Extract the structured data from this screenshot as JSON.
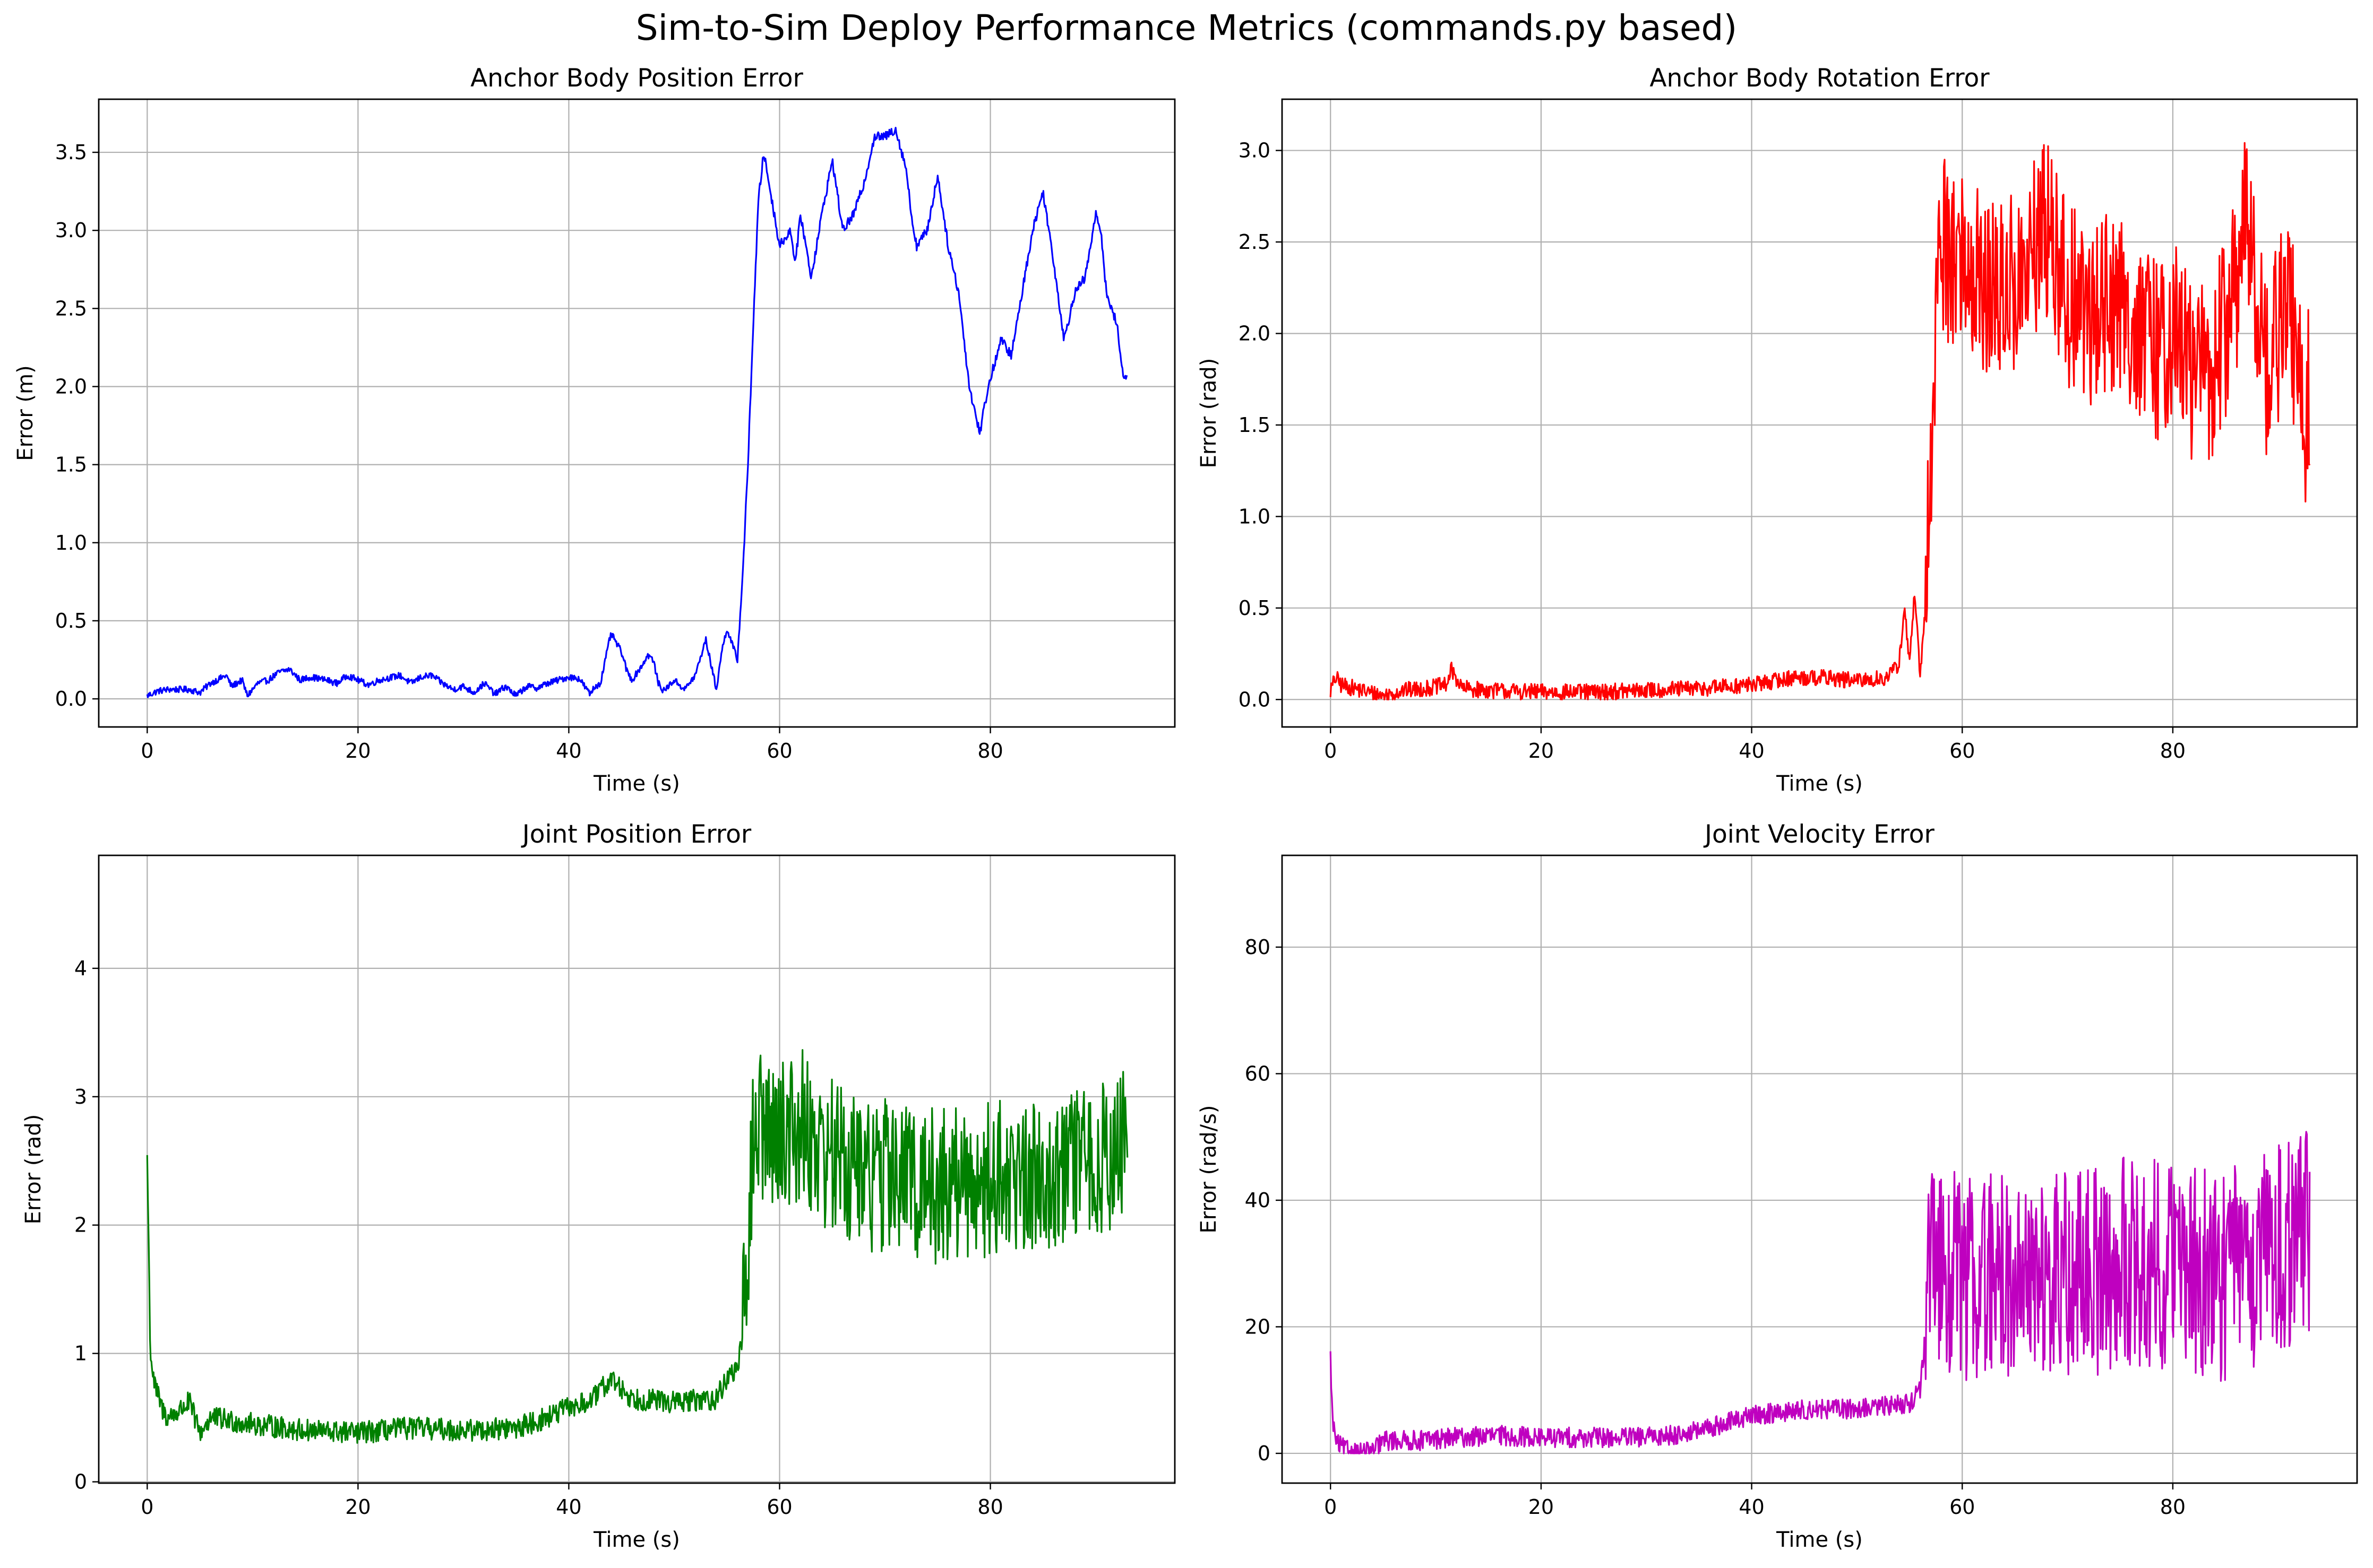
{
  "figure": {
    "title": "Sim-to-Sim Deploy Performance Metrics (commands.py based)"
  },
  "chart_data": [
    {
      "type": "line",
      "title": "Anchor Body Position Error",
      "xlabel": "Time (s)",
      "ylabel": "Error (m)",
      "color": "#0000ff",
      "xlim": [
        -4.6,
        97.5
      ],
      "ylim": [
        -0.18,
        3.84
      ],
      "xticks": [
        0,
        20,
        40,
        60,
        80
      ],
      "yticks": [
        0.0,
        0.5,
        1.0,
        1.5,
        2.0,
        2.5,
        3.0,
        3.5
      ],
      "ytick_labels": [
        "0.0",
        "0.5",
        "1.0",
        "1.5",
        "2.0",
        "2.5",
        "3.0",
        "3.5"
      ],
      "grid": true,
      "legend": "none",
      "key_points": [
        [
          0,
          0.02
        ],
        [
          1,
          0.05
        ],
        [
          2,
          0.06
        ],
        [
          4,
          0.06
        ],
        [
          5,
          0.04
        ],
        [
          6,
          0.1
        ],
        [
          7.5,
          0.15
        ],
        [
          8,
          0.08
        ],
        [
          9,
          0.12
        ],
        [
          9.5,
          0.02
        ],
        [
          10.5,
          0.1
        ],
        [
          11.5,
          0.12
        ],
        [
          12.5,
          0.17
        ],
        [
          13.5,
          0.19
        ],
        [
          14.5,
          0.12
        ],
        [
          15.5,
          0.14
        ],
        [
          17,
          0.12
        ],
        [
          18,
          0.1
        ],
        [
          19,
          0.15
        ],
        [
          20,
          0.12
        ],
        [
          21,
          0.09
        ],
        [
          22,
          0.12
        ],
        [
          24,
          0.15
        ],
        [
          25,
          0.1
        ],
        [
          26,
          0.14
        ],
        [
          27,
          0.15
        ],
        [
          28,
          0.1
        ],
        [
          29,
          0.06
        ],
        [
          30,
          0.08
        ],
        [
          31,
          0.04
        ],
        [
          32,
          0.1
        ],
        [
          33,
          0.03
        ],
        [
          34,
          0.08
        ],
        [
          35,
          0.02
        ],
        [
          36,
          0.08
        ],
        [
          37,
          0.07
        ],
        [
          38,
          0.1
        ],
        [
          39,
          0.12
        ],
        [
          40,
          0.14
        ],
        [
          41,
          0.13
        ],
        [
          42,
          0.03
        ],
        [
          42.5,
          0.08
        ],
        [
          43,
          0.1
        ],
        [
          44,
          0.42
        ],
        [
          45,
          0.3
        ],
        [
          45.5,
          0.18
        ],
        [
          46,
          0.12
        ],
        [
          47,
          0.22
        ],
        [
          47.5,
          0.28
        ],
        [
          48,
          0.25
        ],
        [
          48.5,
          0.1
        ],
        [
          49,
          0.05
        ],
        [
          50,
          0.12
        ],
        [
          51,
          0.06
        ],
        [
          52,
          0.15
        ],
        [
          53,
          0.38
        ],
        [
          54,
          0.06
        ],
        [
          54.5,
          0.3
        ],
        [
          55,
          0.45
        ],
        [
          55.5,
          0.35
        ],
        [
          56,
          0.25
        ],
        [
          56.5,
          0.8
        ],
        [
          57,
          1.5
        ],
        [
          57.5,
          2.4
        ],
        [
          58,
          3.2
        ],
        [
          58.5,
          3.5
        ],
        [
          59,
          3.3
        ],
        [
          60,
          2.9
        ],
        [
          61,
          3.0
        ],
        [
          61.5,
          2.8
        ],
        [
          62,
          3.1
        ],
        [
          63,
          2.7
        ],
        [
          64,
          3.1
        ],
        [
          65,
          3.45
        ],
        [
          66,
          3.0
        ],
        [
          67,
          3.1
        ],
        [
          68,
          3.3
        ],
        [
          69,
          3.6
        ],
        [
          70,
          3.6
        ],
        [
          71,
          3.65
        ],
        [
          72,
          3.4
        ],
        [
          72.5,
          3.1
        ],
        [
          73,
          2.9
        ],
        [
          74,
          3.0
        ],
        [
          75,
          3.35
        ],
        [
          76,
          2.9
        ],
        [
          77,
          2.6
        ],
        [
          78,
          2.0
        ],
        [
          78.5,
          1.85
        ],
        [
          79,
          1.7
        ],
        [
          79.5,
          1.9
        ],
        [
          80,
          2.05
        ],
        [
          81,
          2.3
        ],
        [
          82,
          2.2
        ],
        [
          83,
          2.6
        ],
        [
          84,
          3.0
        ],
        [
          85,
          3.25
        ],
        [
          86,
          2.8
        ],
        [
          87,
          2.3
        ],
        [
          88,
          2.6
        ],
        [
          89,
          2.7
        ],
        [
          90,
          3.1
        ],
        [
          90.5,
          3.0
        ],
        [
          91,
          2.6
        ],
        [
          91.5,
          2.5
        ],
        [
          92,
          2.4
        ],
        [
          92.5,
          2.1
        ],
        [
          93,
          2.05
        ]
      ],
      "noise": 0.02,
      "noise_growth": 0.01
    },
    {
      "type": "line",
      "title": "Anchor Body Rotation Error",
      "xlabel": "Time (s)",
      "ylabel": "Error (rad)",
      "color": "#ff0000",
      "xlim": [
        -4.6,
        97.5
      ],
      "ylim": [
        -0.15,
        3.28
      ],
      "xticks": [
        0,
        20,
        40,
        60,
        80
      ],
      "yticks": [
        0.0,
        0.5,
        1.0,
        1.5,
        2.0,
        2.5,
        3.0
      ],
      "ytick_labels": [
        "0.0",
        "0.5",
        "1.0",
        "1.5",
        "2.0",
        "2.5",
        "3.0"
      ],
      "grid": true,
      "legend": "none",
      "key_points": [
        [
          0,
          0.05
        ],
        [
          0.5,
          0.12
        ],
        [
          1,
          0.08
        ],
        [
          3,
          0.05
        ],
        [
          5,
          0.02
        ],
        [
          7,
          0.05
        ],
        [
          9,
          0.06
        ],
        [
          11,
          0.08
        ],
        [
          11.5,
          0.16
        ],
        [
          12.5,
          0.06
        ],
        [
          15,
          0.05
        ],
        [
          20,
          0.04
        ],
        [
          25,
          0.04
        ],
        [
          30,
          0.05
        ],
        [
          35,
          0.06
        ],
        [
          40,
          0.08
        ],
        [
          44,
          0.12
        ],
        [
          47,
          0.12
        ],
        [
          50,
          0.1
        ],
        [
          53,
          0.12
        ],
        [
          54,
          0.2
        ],
        [
          54.5,
          0.5
        ],
        [
          55,
          0.2
        ],
        [
          55.5,
          0.6
        ],
        [
          56,
          0.1
        ],
        [
          56.5,
          0.5
        ],
        [
          57,
          1.2
        ],
        [
          57.5,
          2.2
        ],
        [
          58,
          2.5
        ],
        [
          60,
          2.4
        ],
        [
          63,
          2.2
        ],
        [
          66,
          2.3
        ],
        [
          68,
          2.6
        ],
        [
          70,
          2.2
        ],
        [
          72,
          2.1
        ],
        [
          74,
          2.2
        ],
        [
          76,
          2.1
        ],
        [
          78,
          1.9
        ],
        [
          80,
          2.0
        ],
        [
          82,
          1.8
        ],
        [
          84,
          1.8
        ],
        [
          86,
          2.3
        ],
        [
          87,
          2.6
        ],
        [
          88,
          2.2
        ],
        [
          89,
          1.8
        ],
        [
          90,
          2.0
        ],
        [
          91,
          2.2
        ],
        [
          92,
          1.7
        ],
        [
          92.5,
          1.5
        ],
        [
          93,
          1.7
        ]
      ],
      "noise": 0.02,
      "noise_growth": 0.5,
      "clip": [
        0,
        3.14
      ]
    },
    {
      "type": "line",
      "title": "Joint Position Error",
      "xlabel": "Time (s)",
      "ylabel": "Error (rad)",
      "color": "#008000",
      "xlim": [
        -4.6,
        97.5
      ],
      "ylim": [
        -0.01,
        4.88
      ],
      "xticks": [
        0,
        20,
        40,
        60,
        80
      ],
      "yticks": [
        0,
        1,
        2,
        3,
        4
      ],
      "ytick_labels": [
        "0",
        "1",
        "2",
        "3",
        "4"
      ],
      "grid": true,
      "legend": "none",
      "key_points": [
        [
          0,
          2.55
        ],
        [
          0.3,
          1.0
        ],
        [
          0.7,
          0.75
        ],
        [
          1.5,
          0.55
        ],
        [
          2,
          0.5
        ],
        [
          3,
          0.55
        ],
        [
          4,
          0.62
        ],
        [
          5,
          0.38
        ],
        [
          6,
          0.5
        ],
        [
          10,
          0.45
        ],
        [
          15,
          0.4
        ],
        [
          20,
          0.38
        ],
        [
          25,
          0.42
        ],
        [
          30,
          0.4
        ],
        [
          35,
          0.42
        ],
        [
          38,
          0.5
        ],
        [
          40,
          0.58
        ],
        [
          42,
          0.62
        ],
        [
          44,
          0.8
        ],
        [
          46,
          0.65
        ],
        [
          50,
          0.62
        ],
        [
          54,
          0.65
        ],
        [
          55,
          0.8
        ],
        [
          56,
          0.9
        ],
        [
          56.5,
          1.1
        ],
        [
          57,
          1.9
        ],
        [
          57.5,
          2.6
        ],
        [
          58,
          2.8
        ],
        [
          60,
          2.7
        ],
        [
          62,
          2.8
        ],
        [
          64,
          2.6
        ],
        [
          66,
          2.5
        ],
        [
          68,
          2.4
        ],
        [
          70,
          2.4
        ],
        [
          75,
          2.3
        ],
        [
          80,
          2.35
        ],
        [
          85,
          2.4
        ],
        [
          90,
          2.5
        ],
        [
          93,
          2.6
        ]
      ],
      "noise": 0.06,
      "noise_growth": 0.55
    },
    {
      "type": "line",
      "title": "Joint Velocity Error",
      "xlabel": "Time (s)",
      "ylabel": "Error (rad/s)",
      "color": "#bf00bf",
      "xlim": [
        -4.6,
        97.5
      ],
      "ylim": [
        -4.7,
        94.5
      ],
      "xticks": [
        0,
        20,
        40,
        60,
        80
      ],
      "yticks": [
        0,
        20,
        40,
        60,
        80
      ],
      "ytick_labels": [
        "0",
        "20",
        "40",
        "60",
        "80"
      ],
      "grid": true,
      "legend": "none",
      "key_points": [
        [
          0,
          15
        ],
        [
          0.2,
          5
        ],
        [
          0.6,
          1.5
        ],
        [
          1.5,
          0.5
        ],
        [
          3,
          0.2
        ],
        [
          4,
          0.2
        ],
        [
          5,
          2
        ],
        [
          8,
          2
        ],
        [
          12,
          2.5
        ],
        [
          16,
          2.8
        ],
        [
          20,
          2.5
        ],
        [
          25,
          2.5
        ],
        [
          30,
          2.5
        ],
        [
          35,
          3.5
        ],
        [
          38,
          5
        ],
        [
          40,
          6
        ],
        [
          43,
          6.5
        ],
        [
          46,
          7
        ],
        [
          50,
          7
        ],
        [
          53,
          7.5
        ],
        [
          55,
          8
        ],
        [
          56,
          10
        ],
        [
          57,
          28
        ],
        [
          58,
          30
        ],
        [
          60,
          28
        ],
        [
          65,
          28
        ],
        [
          70,
          28
        ],
        [
          75,
          30
        ],
        [
          80,
          30
        ],
        [
          85,
          28
        ],
        [
          90,
          32
        ],
        [
          93,
          35
        ]
      ],
      "noise": 0.8,
      "noise_growth": 16,
      "clip": [
        0,
        89
      ]
    }
  ]
}
